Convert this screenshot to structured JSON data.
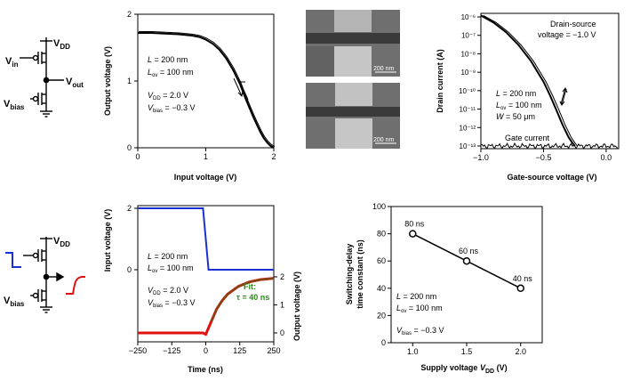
{
  "chart_data": [
    {
      "type": "line",
      "panel": "top-left",
      "xlabel": "Input voltage (V)",
      "ylabel": "Output voltage (V)",
      "xlim": [
        0,
        2
      ],
      "ylim": [
        0,
        2
      ],
      "xticks": [
        "0",
        "1",
        "2"
      ],
      "yticks": [
        "0",
        "1",
        "2"
      ],
      "series": [
        {
          "x": [
            0,
            0.2,
            0.4,
            0.6,
            0.8,
            0.9,
            1.0,
            1.1,
            1.2,
            1.3,
            1.4,
            1.5,
            1.6,
            1.7,
            1.8,
            1.85,
            1.9,
            1.95,
            2.0
          ],
          "y": [
            1.72,
            1.72,
            1.71,
            1.7,
            1.68,
            1.66,
            1.62,
            1.56,
            1.47,
            1.34,
            1.17,
            0.96,
            0.7,
            0.46,
            0.24,
            0.15,
            0.08,
            0.03,
            0.0
          ]
        }
      ],
      "annotations": [
        "L = 200 nm",
        "Lov = 100 nm",
        "VDD = 2.0 V",
        "Vbias = −0.3 V"
      ]
    },
    {
      "type": "line",
      "panel": "top-right",
      "xlabel": "Gate-source voltage (V)",
      "ylabel": "Drain current (A)",
      "xlim": [
        -1.0,
        0.1
      ],
      "yscale": "log",
      "ylim": [
        1e-13,
        1e-06
      ],
      "xticks": [
        "−1.0",
        "−0.5",
        "0.0"
      ],
      "yticks": [
        "10⁻¹³",
        "10⁻¹²",
        "10⁻¹¹",
        "10⁻¹⁰",
        "10⁻⁹",
        "10⁻⁸",
        "10⁻⁷",
        "10⁻⁶"
      ],
      "series": [
        {
          "name": "Drain current",
          "x": [
            -1.0,
            -0.9,
            -0.8,
            -0.7,
            -0.6,
            -0.5,
            -0.45,
            -0.4,
            -0.35,
            -0.3,
            -0.27,
            -0.25
          ],
          "y": [
            1.2e-06,
            5e-07,
            1.5e-07,
            3e-08,
            4e-09,
            3e-10,
            6e-11,
            1e-11,
            1.5e-12,
            3e-13,
            1.5e-13,
            1e-13
          ]
        },
        {
          "name": "Gate current",
          "x": [
            -1.0,
            -0.8,
            -0.6,
            -0.4,
            -0.2,
            0.0,
            0.1
          ],
          "y": [
            1e-13,
            1e-13,
            1e-13,
            1e-13,
            1e-13,
            1e-13,
            1e-13
          ]
        }
      ],
      "annotations": [
        "Drain-source",
        "voltage = −1.0 V",
        "L = 200 nm",
        "Lov = 100 nm",
        "W = 50 μm",
        "Gate current"
      ]
    },
    {
      "type": "line",
      "panel": "bottom-left",
      "xlabel": "Time (ns)",
      "ylabel_left": "Input voltage (V)",
      "ylabel_right": "Output voltage (V)",
      "xlim": [
        -250,
        250
      ],
      "xticks": [
        "−250",
        "−125",
        "0",
        "125",
        "250"
      ],
      "yticks_left": [
        "0",
        "2"
      ],
      "yticks_right": [
        "0",
        "1",
        "2"
      ],
      "series": [
        {
          "x": [
            -250,
            -10,
            0,
            10,
            250
          ],
          "y": [
            2,
            2,
            1,
            0,
            0
          ],
          "color": "#1a2fd4"
        },
        {
          "x": [
            -250,
            -10,
            0,
            20,
            40,
            60,
            80,
            120,
            160,
            200,
            250
          ],
          "y": [
            0,
            0,
            -0.05,
            0.4,
            0.85,
            1.15,
            1.38,
            1.66,
            1.82,
            1.9,
            1.95
          ],
          "color": "#e01010"
        },
        {
          "x": [
            20,
            40,
            60,
            80,
            120,
            160,
            200,
            250
          ],
          "y": [
            0.4,
            0.85,
            1.15,
            1.38,
            1.66,
            1.82,
            1.9,
            1.95
          ],
          "color": "#7a4a10"
        }
      ],
      "annotations": [
        "L = 200 nm",
        "Lov = 100 nm",
        "VDD = 2.0 V",
        "Vbias = −0.3 V",
        "Fit:",
        "τ = 40 ns"
      ]
    },
    {
      "type": "scatter",
      "panel": "bottom-right",
      "xlabel": "Supply voltage VDD (V)",
      "ylabel": "Switching-delay time constant (ns)",
      "xlim": [
        0.8,
        2.2
      ],
      "ylim": [
        0,
        100
      ],
      "xticks": [
        "1.0",
        "1.5",
        "2.0"
      ],
      "yticks": [
        "0",
        "20",
        "40",
        "60",
        "80",
        "100"
      ],
      "x": [
        1.0,
        1.5,
        2.0
      ],
      "y": [
        80,
        60,
        40
      ],
      "labels": [
        "80 ns",
        "60 ns",
        "40 ns"
      ],
      "annotations": [
        "L = 200 nm",
        "Lov = 100 nm",
        "Vbias = −0.3 V"
      ]
    }
  ],
  "micrographs": {
    "scale_bar_top": "200 nm",
    "scale_bar_bottom": "200 nm"
  },
  "schematic": {
    "labels": [
      "VDD",
      "Vin",
      "Vout",
      "Vbias"
    ]
  },
  "colors": {
    "input": "#1a2fd4",
    "output": "#e01010",
    "fit": "#7a4a10",
    "fit_text": "#2a8a1a",
    "axis": "#000000"
  }
}
